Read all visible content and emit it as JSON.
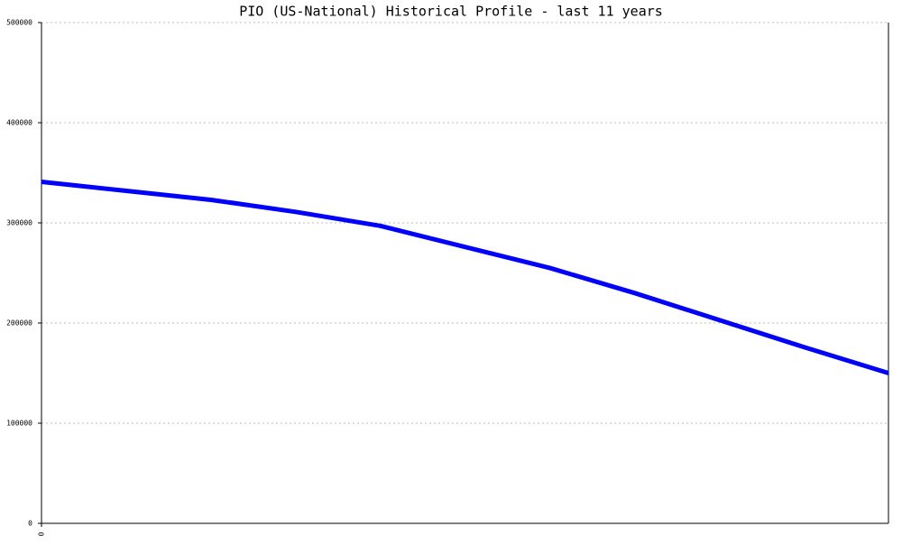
{
  "chart_data": {
    "type": "line",
    "title": "PIO (US-National) Historical Profile - last 11 years",
    "x": [
      0,
      1,
      2,
      3,
      4,
      5,
      6,
      7,
      8,
      9,
      10
    ],
    "xlim": [
      0,
      10
    ],
    "xticks": [
      0
    ],
    "series": [
      {
        "color": "#0000ff",
        "values": [
          341000,
          332000,
          323000,
          311000,
          297000,
          276000,
          255000,
          230000,
          203000,
          176000,
          150000
        ]
      }
    ],
    "ylim": [
      0,
      500000
    ],
    "yticks": [
      0,
      100000,
      200000,
      300000,
      400000,
      500000
    ],
    "grid": true
  }
}
